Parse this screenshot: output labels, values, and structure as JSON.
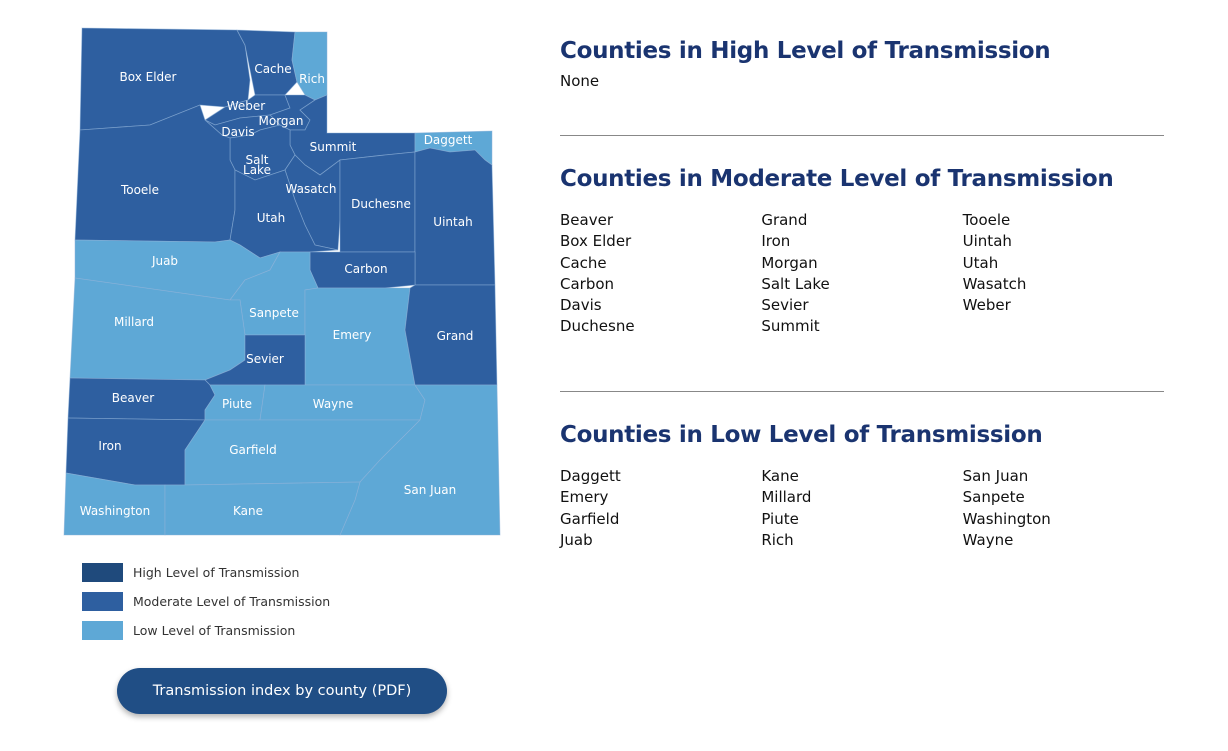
{
  "colors": {
    "high": "#1f4a7c",
    "moderate": "#2e5fa0",
    "low": "#5ea8d6",
    "heading": "#1a3470",
    "button": "#204e85"
  },
  "map": {
    "counties": {
      "box_elder": {
        "name": "Box Elder",
        "level": "moderate"
      },
      "cache": {
        "name": "Cache",
        "level": "moderate"
      },
      "rich": {
        "name": "Rich",
        "level": "low"
      },
      "weber": {
        "name": "Weber",
        "level": "moderate"
      },
      "morgan": {
        "name": "Morgan",
        "level": "moderate"
      },
      "davis": {
        "name": "Davis",
        "level": "moderate"
      },
      "summit": {
        "name": "Summit",
        "level": "moderate"
      },
      "daggett": {
        "name": "Daggett",
        "level": "low"
      },
      "salt_lake": {
        "name": "Salt Lake",
        "line1": "Salt",
        "line2": "Lake",
        "level": "moderate"
      },
      "tooele": {
        "name": "Tooele",
        "level": "moderate"
      },
      "wasatch": {
        "name": "Wasatch",
        "level": "moderate"
      },
      "duchesne": {
        "name": "Duchesne",
        "level": "moderate"
      },
      "uintah": {
        "name": "Uintah",
        "level": "moderate"
      },
      "utah": {
        "name": "Utah",
        "level": "moderate"
      },
      "juab": {
        "name": "Juab",
        "level": "low"
      },
      "carbon": {
        "name": "Carbon",
        "level": "moderate"
      },
      "sanpete": {
        "name": "Sanpete",
        "level": "low"
      },
      "millard": {
        "name": "Millard",
        "level": "low"
      },
      "emery": {
        "name": "Emery",
        "level": "low"
      },
      "grand": {
        "name": "Grand",
        "level": "moderate"
      },
      "sevier": {
        "name": "Sevier",
        "level": "moderate"
      },
      "beaver": {
        "name": "Beaver",
        "level": "moderate"
      },
      "piute": {
        "name": "Piute",
        "level": "low"
      },
      "wayne": {
        "name": "Wayne",
        "level": "low"
      },
      "iron": {
        "name": "Iron",
        "level": "moderate"
      },
      "garfield": {
        "name": "Garfield",
        "level": "low"
      },
      "san_juan": {
        "name": "San Juan",
        "level": "low"
      },
      "washington": {
        "name": "Washington",
        "level": "low"
      },
      "kane": {
        "name": "Kane",
        "level": "low"
      }
    }
  },
  "legend": {
    "high": "High Level of Transmission",
    "moderate": "Moderate Level of Transmission",
    "low": "Low Level of Transmission"
  },
  "button_label": "Transmission index by county (PDF)",
  "high": {
    "heading": "Counties in High Level of Transmission",
    "none": "None"
  },
  "moderate": {
    "heading": "Counties in Moderate Level of Transmission",
    "columns": [
      [
        "Beaver",
        "Box Elder",
        "Cache",
        "Carbon",
        "Davis",
        "Duchesne"
      ],
      [
        "Grand",
        "Iron",
        "Morgan",
        "Salt Lake",
        "Sevier",
        "Summit"
      ],
      [
        "Tooele",
        "Uintah",
        "Utah",
        "Wasatch",
        "Weber"
      ]
    ]
  },
  "low": {
    "heading": "Counties in Low Level of Transmission",
    "columns": [
      [
        "Daggett",
        "Emery",
        "Garfield",
        "Juab"
      ],
      [
        "Kane",
        "Millard",
        "Piute",
        "Rich"
      ],
      [
        "San Juan",
        "Sanpete",
        "Washington",
        "Wayne"
      ]
    ]
  }
}
